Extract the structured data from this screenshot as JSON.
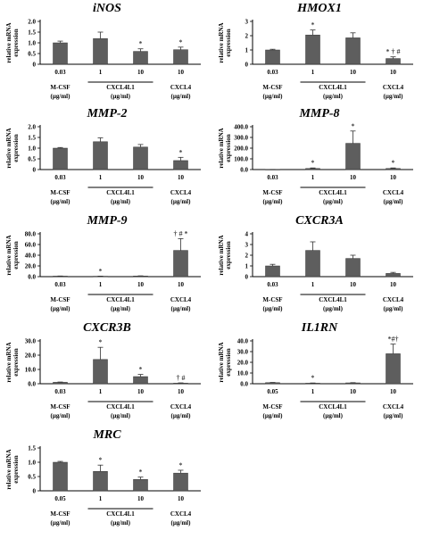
{
  "chart_data": [
    {
      "type": "bar",
      "title": "iNOS",
      "ylabel": "relative mRNA expression",
      "yticks": [
        "0",
        "0.5",
        "1.0",
        "1.5",
        "2.0"
      ],
      "ylim": [
        0,
        2.0
      ],
      "categories": [
        "0.03",
        "1",
        "10",
        "10"
      ],
      "values": [
        1.0,
        1.2,
        0.6,
        0.68
      ],
      "errors": [
        0.08,
        0.3,
        0.12,
        0.12
      ],
      "sig": [
        "",
        "",
        "*",
        "*"
      ],
      "group_labels": [
        "M-CSF",
        "CXCL4L1",
        "CXCL4"
      ],
      "unit_labels": [
        "(µg/ml)",
        "(µg/ml)",
        "(µg/ml)"
      ]
    },
    {
      "type": "bar",
      "title": "HMOX1",
      "ylabel": "relative mRNA expression",
      "yticks": [
        "0",
        "1",
        "2",
        "3"
      ],
      "ylim": [
        0,
        3
      ],
      "categories": [
        "0.03",
        "1",
        "10",
        "10"
      ],
      "values": [
        1.0,
        2.05,
        1.85,
        0.4
      ],
      "errors": [
        0.05,
        0.35,
        0.35,
        0.12
      ],
      "sig": [
        "",
        "*",
        "",
        "* † #"
      ],
      "group_labels": [
        "M-CSF",
        "CXCL4L1",
        "CXCL4"
      ],
      "unit_labels": [
        "(µg/ml)",
        "(µg/ml)",
        "(µg/ml)"
      ]
    },
    {
      "type": "bar",
      "title": "MMP-2",
      "ylabel": "relative mRNA expression",
      "yticks": [
        "0",
        "0.5",
        "1.0",
        "1.5",
        "2.0"
      ],
      "ylim": [
        0,
        2.0
      ],
      "categories": [
        "0.03",
        "1",
        "10",
        "10"
      ],
      "values": [
        1.0,
        1.3,
        1.05,
        0.42
      ],
      "errors": [
        0.03,
        0.18,
        0.12,
        0.15
      ],
      "sig": [
        "",
        "",
        "",
        "*"
      ],
      "group_labels": [
        "M-CSF",
        "CXCL4L1",
        "CXCL4"
      ],
      "unit_labels": [
        "(µg/ml)",
        "(µg/ml)",
        "(µg/ml)"
      ]
    },
    {
      "type": "bar",
      "title": "MMP-8",
      "ylabel": "relative mRNA expression",
      "yticks": [
        "0.0",
        "100.0",
        "200.0",
        "300.0",
        "400.0"
      ],
      "ylim": [
        0,
        400
      ],
      "categories": [
        "0.03",
        "1",
        "10",
        "10"
      ],
      "values": [
        1.0,
        10,
        245,
        10
      ],
      "errors": [
        0.5,
        5,
        115,
        5
      ],
      "sig": [
        "",
        "*",
        "*",
        "*"
      ],
      "group_labels": [
        "M-CSF",
        "CXCL4L1",
        "CXCL4"
      ],
      "unit_labels": [
        "(µg/ml)",
        "(µg/ml)",
        "(µg/ml)"
      ]
    },
    {
      "type": "bar",
      "title": "MMP-9",
      "ylabel": "relative mRNA expression",
      "yticks": [
        "0.0",
        "20.0",
        "40.0",
        "60.0",
        "80.0"
      ],
      "ylim": [
        0,
        80
      ],
      "categories": [
        "0.03",
        "1",
        "10",
        "10"
      ],
      "values": [
        1.0,
        0.8,
        1.2,
        49
      ],
      "errors": [
        0.2,
        0.2,
        0.3,
        22
      ],
      "sig": [
        "",
        "*",
        "",
        "† # *"
      ],
      "group_labels": [
        "M-CSF",
        "CXCL4L1",
        "CXCL4"
      ],
      "unit_labels": [
        "(µg/ml)",
        "(µg/ml)",
        "(µg/ml)"
      ]
    },
    {
      "type": "bar",
      "title": "CXCR3A",
      "ylabel": "relative mRNA expression",
      "yticks": [
        "0",
        "1",
        "2",
        "3",
        "4"
      ],
      "ylim": [
        0,
        4
      ],
      "categories": [
        "0.03",
        "1",
        "10",
        "10"
      ],
      "values": [
        1.0,
        2.45,
        1.7,
        0.3
      ],
      "errors": [
        0.15,
        0.8,
        0.3,
        0.1
      ],
      "sig": [
        "",
        "",
        "",
        ""
      ],
      "group_labels": [
        "M-CSF",
        "CXCL4L1",
        "CXCL4"
      ],
      "unit_labels": [
        "(µg/ml)",
        "(µg/ml)",
        "(µg/ml)"
      ]
    },
    {
      "type": "bar",
      "title": "CXCR3B",
      "ylabel": "relative mRNA expression",
      "yticks": [
        "0.0",
        "10.0",
        "20.0",
        "30.0"
      ],
      "ylim": [
        0,
        30
      ],
      "categories": [
        "0.03",
        "1",
        "10",
        "10"
      ],
      "values": [
        1.0,
        17,
        5,
        0.4
      ],
      "errors": [
        0.2,
        8.5,
        1.5,
        0.2
      ],
      "sig": [
        "",
        "*",
        "*",
        "† #"
      ],
      "group_labels": [
        "M-CSF",
        "CXCL4L1",
        "CXCL4"
      ],
      "unit_labels": [
        "(µg/ml)",
        "(µg/ml)",
        "(µg/ml)"
      ]
    },
    {
      "type": "bar",
      "title": "IL1RN",
      "ylabel": "relative mRNA expression",
      "yticks": [
        "0.0",
        "10.0",
        "20.0",
        "30.0",
        "40.0"
      ],
      "ylim": [
        0,
        40
      ],
      "categories": [
        "0.05",
        "1",
        "10",
        "10"
      ],
      "values": [
        1.0,
        0.5,
        0.8,
        28
      ],
      "errors": [
        0.2,
        0.2,
        0.2,
        9
      ],
      "sig": [
        "",
        "*",
        "",
        "*#†"
      ],
      "group_labels": [
        "M-CSF",
        "CXCL4L1",
        "CXCL4"
      ],
      "unit_labels": [
        "(µg/ml)",
        "(µg/ml)",
        "(µg/ml)"
      ]
    },
    {
      "type": "bar",
      "title": "MRC",
      "ylabel": "relative mRNA expression",
      "yticks": [
        "0",
        "0.5",
        "1.0",
        "1.5"
      ],
      "ylim": [
        0,
        1.5
      ],
      "categories": [
        "0.05",
        "1",
        "10",
        "10"
      ],
      "values": [
        1.0,
        0.68,
        0.4,
        0.62
      ],
      "errors": [
        0.03,
        0.22,
        0.08,
        0.1
      ],
      "sig": [
        "",
        "*",
        "*",
        "*"
      ],
      "group_labels": [
        "M-CSF",
        "CXCL4L1",
        "CXCL4"
      ],
      "unit_labels": [
        "(µg/ml)",
        "(µg/ml)",
        "(µg/ml)"
      ]
    }
  ]
}
